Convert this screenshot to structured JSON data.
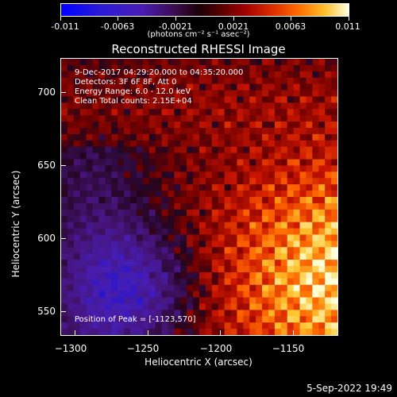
{
  "colorbar": {
    "ticks": [
      "-0.011",
      "-0.0063",
      "-0.0021",
      "0.0021",
      "0.0063",
      "0.011"
    ],
    "units": "(photons cm⁻² s⁻¹ asec⁻²)"
  },
  "title": "Reconstructed RHESSI Image",
  "annotations": {
    "time": "9-Dec-2017 04:29:20.000 to 04:35:20.000",
    "detectors": "Detectors: 3F 6F 8F, Att 0",
    "energy": "Energy Range: 6.0 - 12.0 keV",
    "clean": "Clean     Total counts: 2.15E+04",
    "peak": "Position of Peak = [-1123,570]"
  },
  "axes": {
    "xlabel": "Heliocentric X (arcsec)",
    "ylabel": "Heliocentric Y (arcsec)",
    "xticks": [
      "−1300",
      "−1250",
      "−1200",
      "−1150"
    ],
    "yticks": [
      "700",
      "650",
      "600",
      "550"
    ]
  },
  "footer": {
    "date": "5-Sep-2022 19:49"
  },
  "colors": {
    "background": "#000000",
    "text": "#ffffff"
  }
}
